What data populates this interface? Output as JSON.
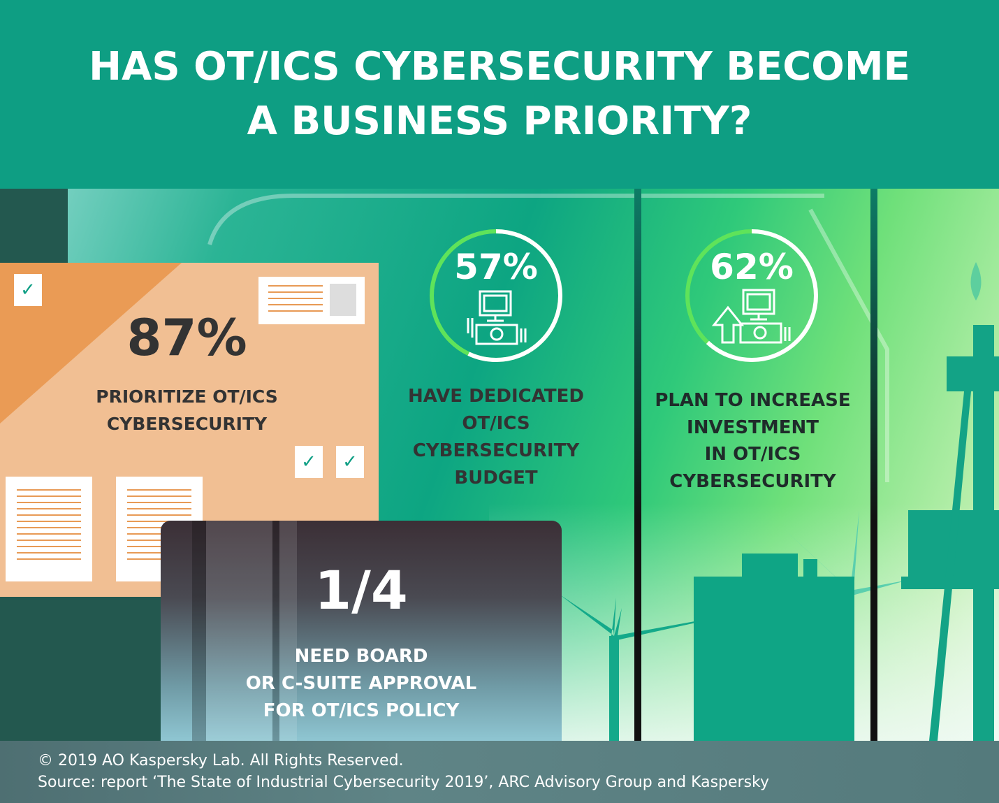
{
  "header": {
    "title": "HAS OT/ICS CYBERSECURITY BECOME A BUSINESS PRIORITY?"
  },
  "colors": {
    "header": "#0e9e83",
    "accent_green": "#5fe35a",
    "orange": "#f1bf93",
    "dark": "#23584f"
  },
  "stats": [
    {
      "value": "87%",
      "percent": 87,
      "label_lines": [
        "PRIORITIZE OT/ICS",
        "CYBERSECURITY"
      ]
    },
    {
      "value": "57%",
      "percent": 57,
      "icon": "computer-workstation-icon",
      "label_lines": [
        "HAVE DEDICATED",
        "OT/ICS",
        "CYBERSECURITY",
        "BUDGET"
      ]
    },
    {
      "value": "62%",
      "percent": 62,
      "icon": "computer-increase-arrow-icon",
      "label_lines": [
        "PLAN TO INCREASE",
        "INVESTMENT",
        "IN OT/ICS",
        "CYBERSECURITY"
      ]
    },
    {
      "value": "1/4",
      "label_lines": [
        "NEED BOARD",
        "OR C-SUITE APPROVAL",
        "FOR OT/ICS POLICY"
      ]
    }
  ],
  "checkmark": "✓",
  "footer": {
    "copyright": "© 2019 AO Kaspersky Lab. All Rights Reserved.",
    "source": "Source: report ‘The State of Industrial Cybersecurity 2019’, ARC Advisory Group and Kaspersky"
  }
}
